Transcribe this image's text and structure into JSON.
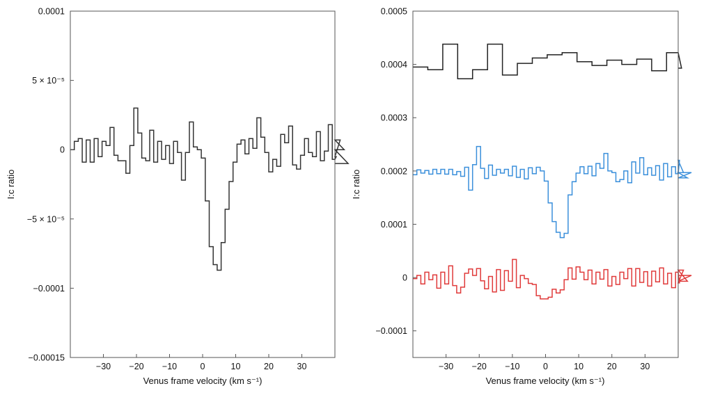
{
  "chart_data": [
    {
      "type": "line",
      "style": "step",
      "panel": "left",
      "xlabel": "Venus frame velocity (km s⁻¹)",
      "ylabel": "I:c ratio",
      "xlim": [
        -40,
        40
      ],
      "ylim": [
        -0.00015,
        0.0001
      ],
      "xticks": [
        -30,
        -20,
        -10,
        0,
        10,
        20,
        30
      ],
      "xtick_labels": [
        "−30",
        "−20",
        "−10",
        "0",
        "10",
        "20",
        "30"
      ],
      "yticks": [
        0.0001,
        5e-05,
        0,
        -5e-05,
        -0.0001,
        -0.00015
      ],
      "ytick_labels": [
        "0.0001",
        "5 × 10⁻⁵",
        "0",
        "−5 × 10⁻⁵",
        "−0.0001",
        "−0.00015"
      ],
      "grid": false,
      "series": [
        {
          "color": "#333333",
          "x_start": -40,
          "bin_width": 1.2,
          "values": [
            0.0,
            6e-06,
            8e-06,
            -9e-06,
            7e-06,
            -9e-06,
            8e-06,
            -5e-06,
            6e-06,
            3e-06,
            1.6e-05,
            -4e-06,
            -8e-06,
            -8e-06,
            -1.7e-05,
            3e-06,
            3e-05,
            1.2e-05,
            -6e-06,
            -8e-06,
            1.4e-05,
            -9e-06,
            6e-06,
            -7e-06,
            3e-06,
            -1e-05,
            6e-06,
            -2e-06,
            -2.2e-05,
            -2e-06,
            2e-05,
            2e-06,
            0.0,
            -6e-06,
            -3.7e-05,
            -7e-05,
            -8.3e-05,
            -8.7e-05,
            -6.7e-05,
            -4.3e-05,
            -2.3e-05,
            -9e-06,
            4e-06,
            7e-06,
            -3e-06,
            8e-06,
            1e-06,
            2.3e-05,
            9e-06,
            -2e-06,
            -1.6e-05,
            -7e-06,
            -1.2e-05,
            1.1e-05,
            5e-06,
            1.7e-05,
            -1.1e-05,
            -1.4e-05,
            -4e-06,
            8e-06,
            -2e-06,
            -5e-06,
            1.3e-05,
            -8e-06,
            -1e-06,
            1.8e-05,
            -7e-06,
            -5e-06,
            7e-06,
            0.0,
            -1e-05
          ]
        }
      ]
    },
    {
      "type": "line",
      "style": "step",
      "panel": "right",
      "xlabel": "Venus frame velocity (km s⁻¹)",
      "ylabel": "I:c ratio",
      "xlim": [
        -40,
        40
      ],
      "ylim": [
        -0.00015,
        0.0005
      ],
      "xticks": [
        -30,
        -20,
        -10,
        0,
        10,
        20,
        30
      ],
      "xtick_labels": [
        "−30",
        "−20",
        "−10",
        "0",
        "10",
        "20",
        "30"
      ],
      "yticks": [
        0.0005,
        0.0004,
        0.0003,
        0.0002,
        0.0001,
        0,
        -0.0001
      ],
      "ytick_labels": [
        "0.0005",
        "0.0004",
        "0.0003",
        "0.0002",
        "0.0001",
        "0",
        "−0.0001"
      ],
      "grid": false,
      "series": [
        {
          "color": "#222222",
          "x_start": -40,
          "bin_width": 4.5,
          "values": [
            0.000395,
            0.00039,
            0.000438,
            0.000373,
            0.00039,
            0.000438,
            0.00038,
            0.000402,
            0.000412,
            0.000418,
            0.000422,
            0.000405,
            0.000398,
            0.000408,
            0.0004,
            0.00041,
            0.000388,
            0.000422,
            0.000393
          ]
        },
        {
          "color": "#3a8fdb",
          "x_start": -40,
          "bin_width": 1.2,
          "values": [
            0.000193,
            0.000202,
            0.000196,
            0.000201,
            0.000194,
            0.000203,
            0.000195,
            0.000203,
            0.000194,
            0.000203,
            0.000193,
            0.000199,
            0.00019,
            0.000207,
            0.000164,
            0.000212,
            0.000246,
            0.000205,
            0.000186,
            0.000211,
            0.000192,
            0.000203,
            0.000196,
            0.000203,
            0.000191,
            0.000209,
            0.000188,
            0.000203,
            0.000185,
            0.000206,
            0.000195,
            0.000207,
            0.0002,
            0.000181,
            0.00014,
            0.000105,
            8.5e-05,
            7.5e-05,
            8.3e-05,
            0.000155,
            0.00018,
            0.000196,
            0.000208,
            0.000195,
            0.000209,
            0.000191,
            0.000214,
            0.000205,
            0.000233,
            0.0002,
            0.000197,
            0.00018,
            0.000184,
            0.0002,
            0.000178,
            0.000217,
            0.000196,
            0.000225,
            0.000193,
            0.000206,
            0.000192,
            0.00021,
            0.000183,
            0.000214,
            0.000189,
            0.000208,
            0.000195,
            0.00022,
            0.000197,
            0.000187,
            0.000197
          ]
        },
        {
          "color": "#e03a3a",
          "x_start": -40,
          "bin_width": 1.2,
          "values": [
            -2e-06,
            4e-06,
            -1.2e-05,
            1e-05,
            -4e-06,
            5e-06,
            -2e-05,
            1e-05,
            -1.2e-05,
            2.2e-05,
            -1.5e-05,
            -2.9e-05,
            -1.8e-05,
            8e-06,
            1.6e-05,
            4e-06,
            1.7e-05,
            -6e-06,
            -2.1e-05,
            2e-06,
            -2.7e-05,
            1.5e-05,
            -2.4e-05,
            1.3e-05,
            -7e-06,
            3.4e-05,
            -1.9e-05,
            4e-06,
            -2e-06,
            -1.1e-05,
            -1.3e-05,
            -3.4e-05,
            -4e-05,
            -4e-05,
            -3.7e-05,
            -2.2e-05,
            -2.9e-05,
            -2.3e-05,
            -4e-06,
            1.8e-05,
            -3e-06,
            2e-05,
            1e-05,
            -4e-06,
            1.4e-05,
            -1.2e-05,
            1e-05,
            -3e-06,
            1.5e-05,
            -1.6e-05,
            2e-06,
            -1.3e-05,
            1e-05,
            -2e-06,
            1.7e-05,
            -1.6e-05,
            1.7e-05,
            -9e-06,
            1.1e-05,
            -1.6e-05,
            1.2e-05,
            -8e-06,
            1.8e-05,
            -1.2e-05,
            8e-06,
            -1.9e-05,
            1e-05,
            -1e-05,
            1.4e-05,
            -7e-06,
            4e-06
          ]
        }
      ]
    }
  ]
}
